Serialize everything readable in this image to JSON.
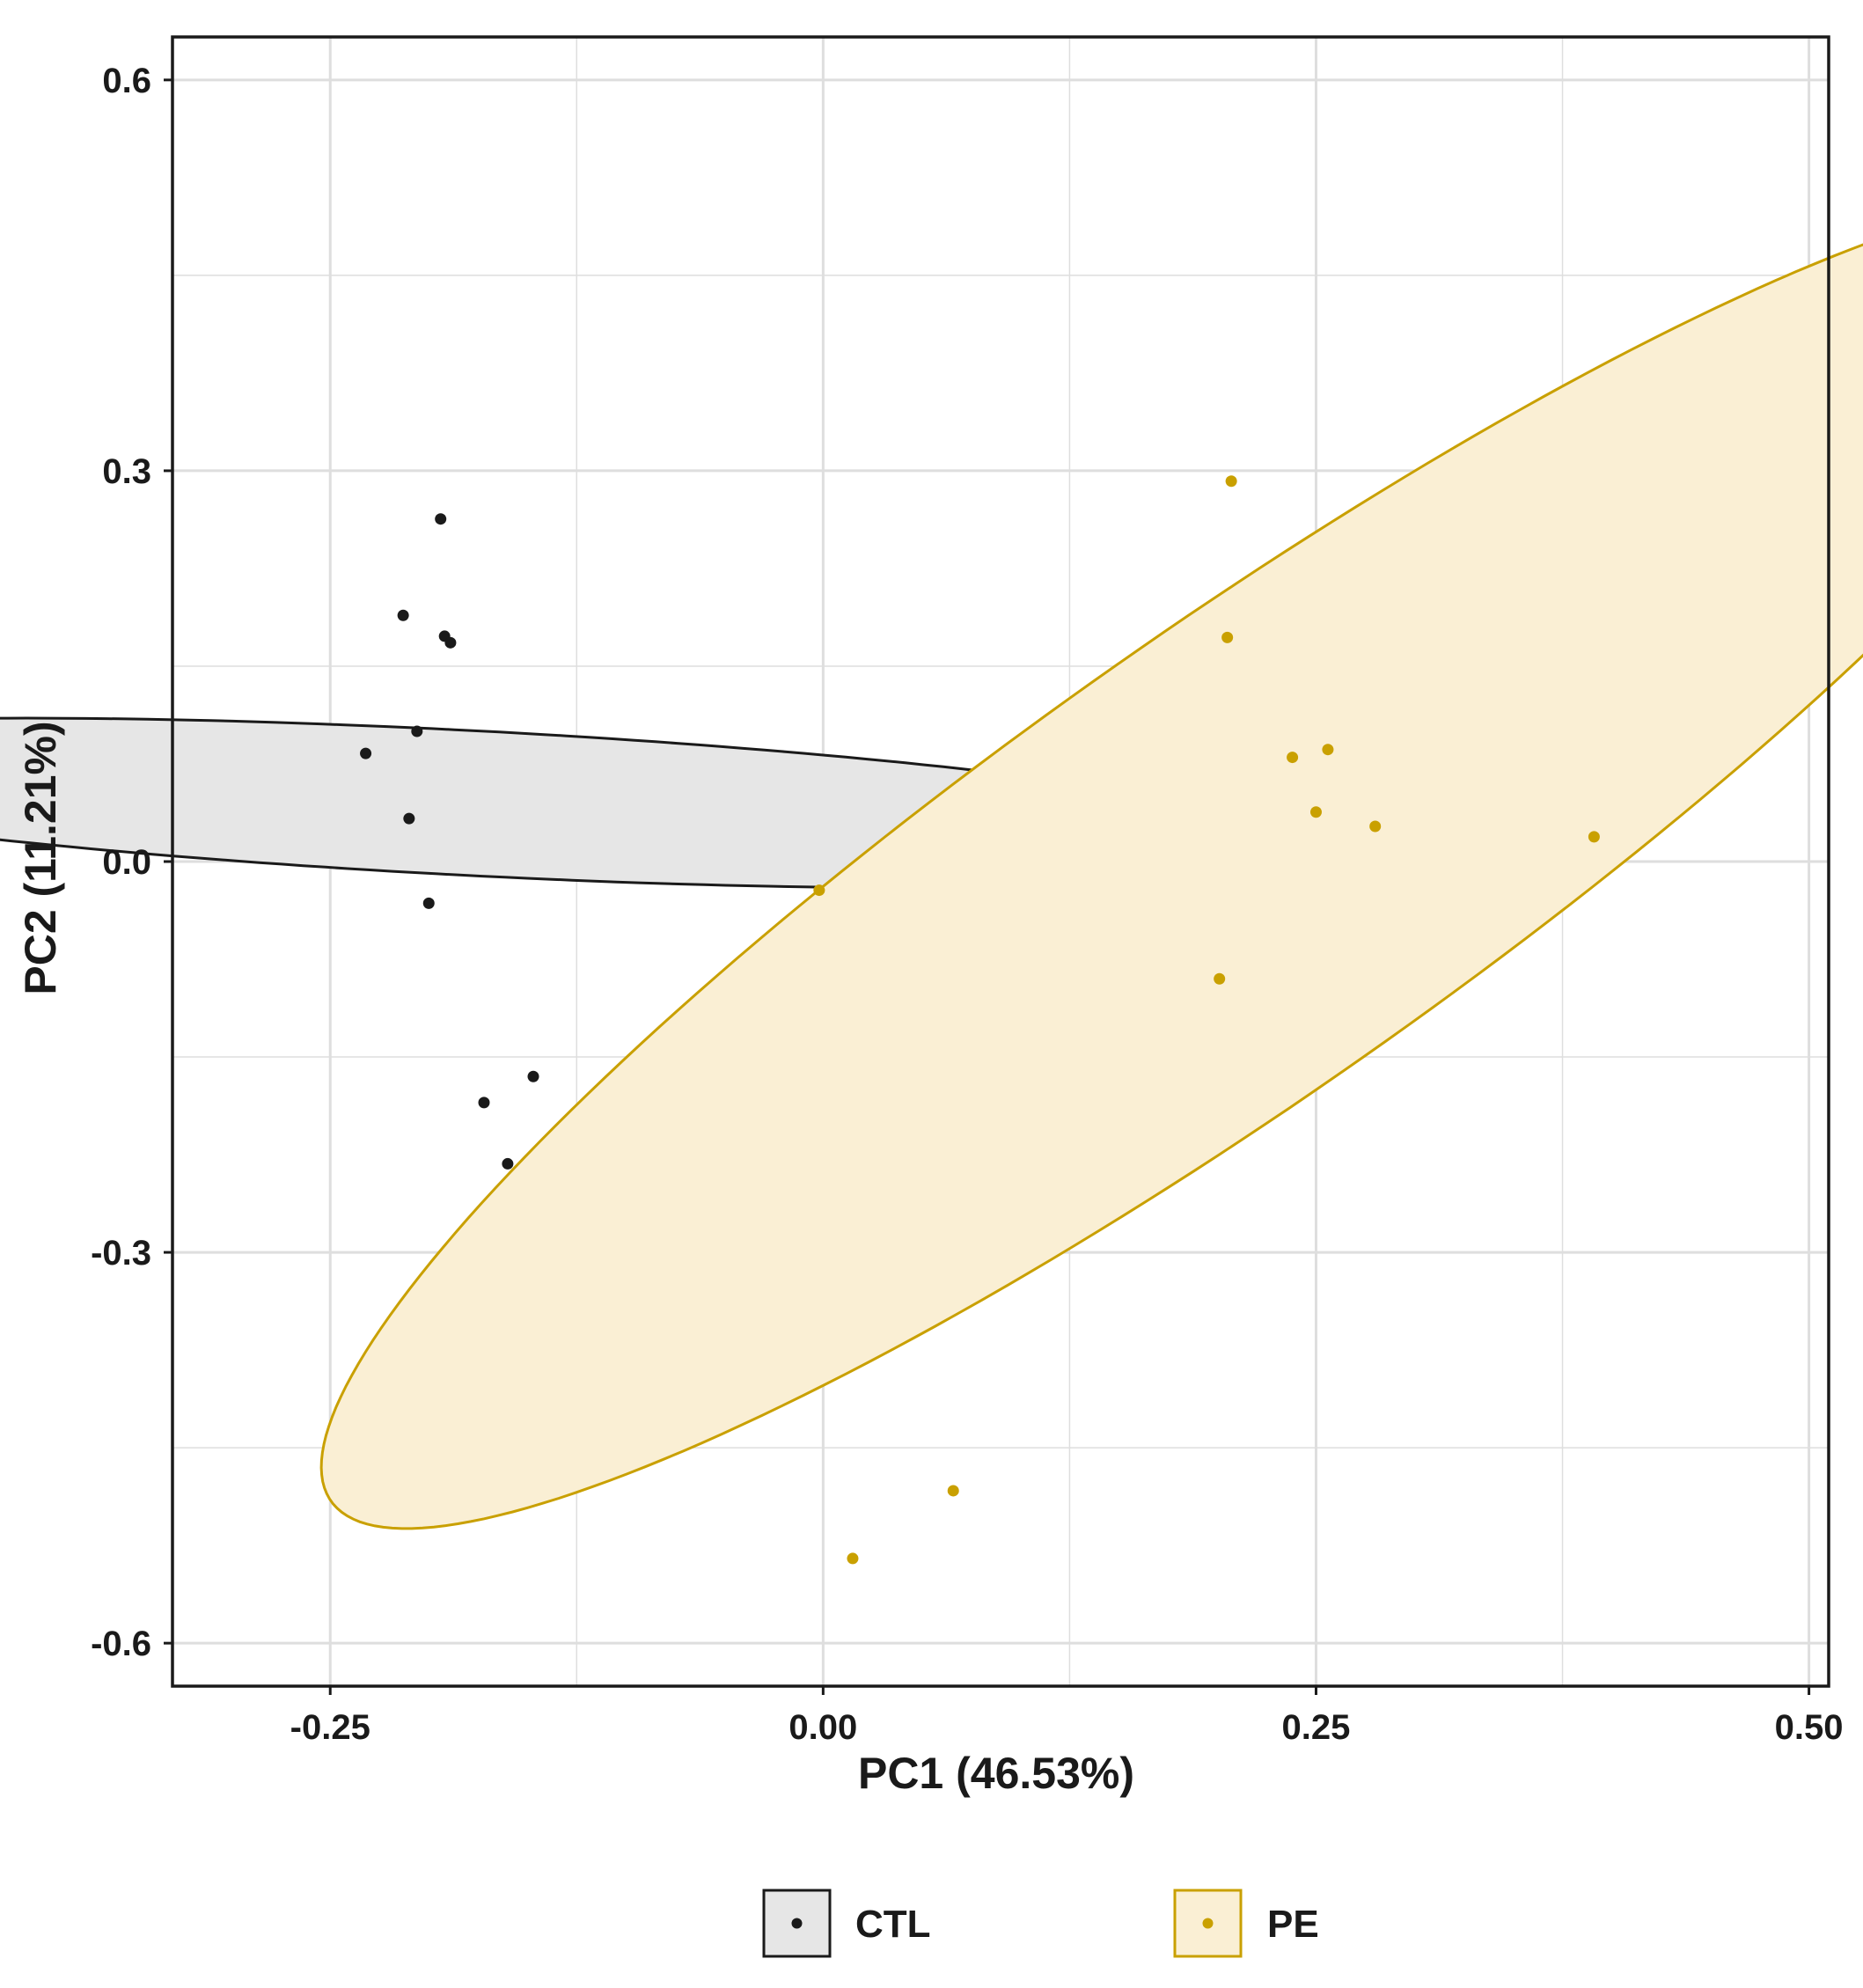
{
  "chart_data": {
    "type": "scatter",
    "title": "",
    "xlabel": "PC1 (46.53%)",
    "ylabel": "PC2 (11.21%)",
    "xlim": [
      -0.33,
      0.51
    ],
    "ylim": [
      -0.633,
      0.633
    ],
    "x_ticks": [
      -0.25,
      0.0,
      0.25,
      0.5
    ],
    "x_tick_labels": [
      "-0.25",
      "0.00",
      "0.25",
      "0.50"
    ],
    "y_ticks": [
      0.6,
      0.3,
      0.0,
      -0.3,
      -0.6
    ],
    "y_tick_labels": [
      "0.6",
      "0.3",
      "0.0",
      "-0.3",
      "-0.6"
    ],
    "x_minor_ticks": [
      -0.125,
      0.125,
      0.375
    ],
    "y_minor_ticks": [
      0.45,
      0.15,
      -0.15,
      -0.45
    ],
    "grid": true,
    "legend_position": "bottom",
    "series": [
      {
        "name": "CTL",
        "color": "#1a1a1a",
        "fill": "#e6e6e6",
        "outline": "#1a1a1a",
        "points": [
          {
            "x": -0.232,
            "y": 0.083
          },
          {
            "x": -0.213,
            "y": 0.189
          },
          {
            "x": -0.194,
            "y": 0.263
          },
          {
            "x": -0.192,
            "y": 0.173
          },
          {
            "x": -0.189,
            "y": 0.168
          },
          {
            "x": -0.206,
            "y": 0.1
          },
          {
            "x": -0.21,
            "y": 0.033
          },
          {
            "x": -0.2,
            "y": -0.032
          },
          {
            "x": -0.172,
            "y": -0.185
          },
          {
            "x": -0.16,
            "y": -0.232
          },
          {
            "x": -0.147,
            "y": -0.165
          }
        ],
        "ellipse": {
          "cx": -0.18,
          "cy": 0.045,
          "angle_deg": -4.5,
          "semi_major": 0.437,
          "semi_minor": 0.0555
        }
      },
      {
        "name": "PE",
        "color": "#c9a000",
        "fill": "#faefd4",
        "outline": "#c9a000",
        "points": [
          {
            "x": -0.002,
            "y": -0.022
          },
          {
            "x": 0.207,
            "y": 0.292
          },
          {
            "x": 0.205,
            "y": 0.172
          },
          {
            "x": 0.238,
            "y": 0.08
          },
          {
            "x": 0.256,
            "y": 0.086
          },
          {
            "x": 0.25,
            "y": 0.038
          },
          {
            "x": 0.28,
            "y": 0.027
          },
          {
            "x": 0.391,
            "y": 0.019
          },
          {
            "x": 0.201,
            "y": -0.09
          },
          {
            "x": 0.066,
            "y": -0.483
          },
          {
            "x": 0.015,
            "y": -0.535
          }
        ],
        "ellipse": {
          "cx": 0.211,
          "cy": 0.0,
          "angle_deg": 48,
          "semi_major": 0.676,
          "semi_minor": 0.148
        }
      }
    ]
  }
}
